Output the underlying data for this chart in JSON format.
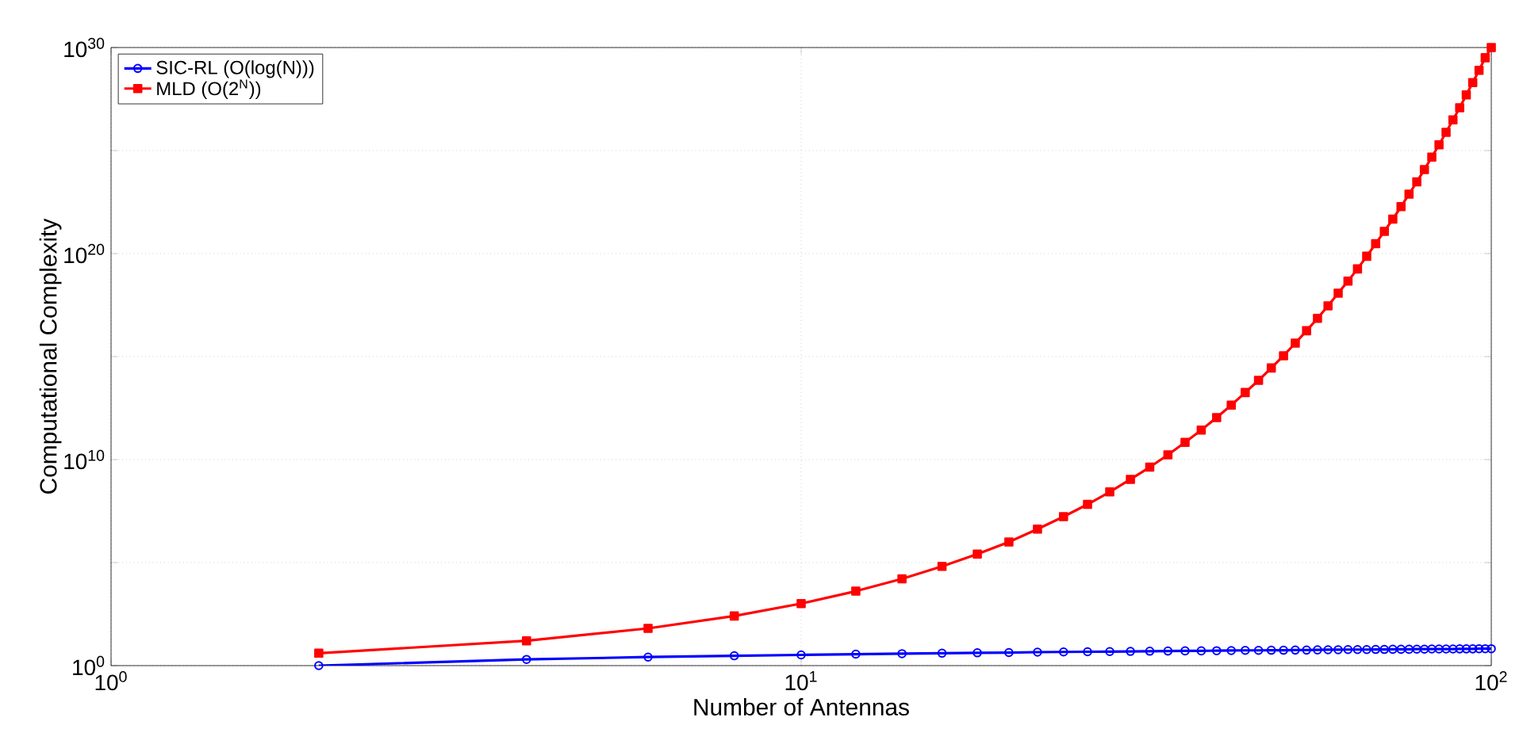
{
  "chart_data": {
    "type": "line",
    "xlabel": "Number of Antennas",
    "ylabel": "Computational Complexity",
    "log": "xy",
    "grid": true,
    "legend": "top left",
    "xlim": [
      1,
      100
    ],
    "ylim": [
      1,
      1e+30
    ],
    "xticks": [
      {
        "value": 1,
        "label": "10$^{0}$"
      },
      {
        "value": 10,
        "label": "10$^{1}$"
      },
      {
        "value": 100,
        "label": "10$^{2}$"
      }
    ],
    "yticks": [
      {
        "value": 1,
        "label": "10$^{0}$"
      },
      {
        "value": 100000.0,
        "label": null
      },
      {
        "value": 10000000000.0,
        "label": "10$^{10}$"
      },
      {
        "value": 1000000000000000.0,
        "label": null
      },
      {
        "value": 1e+20,
        "label": "10$^{20}$"
      },
      {
        "value": 1e+25,
        "label": null
      },
      {
        "value": 1e+30,
        "label": "10$^{30}$"
      }
    ],
    "x": [
      2,
      4,
      6,
      8,
      10,
      12,
      14,
      16,
      18,
      20,
      22,
      24,
      26,
      28,
      30,
      32,
      34,
      36,
      38,
      40,
      42,
      44,
      46,
      48,
      50,
      52,
      54,
      56,
      58,
      60,
      62,
      64,
      66,
      68,
      70,
      72,
      74,
      76,
      78,
      80,
      82,
      84,
      86,
      88,
      90,
      92,
      94,
      96,
      98,
      100
    ],
    "series": [
      {
        "name": "SIC-RL (O(log(N)))",
        "color": "#0000ff",
        "marker": "circle",
        "values": [
          1,
          2,
          2.6,
          3,
          3.3,
          3.6,
          3.8,
          4,
          4.2,
          4.3,
          4.5,
          4.6,
          4.7,
          4.8,
          4.9,
          5,
          5.1,
          5.2,
          5.2,
          5.3,
          5.4,
          5.5,
          5.5,
          5.6,
          5.6,
          5.7,
          5.7,
          5.8,
          5.9,
          5.9,
          6,
          6,
          6,
          6.1,
          6.1,
          6.2,
          6.2,
          6.2,
          6.3,
          6.3,
          6.4,
          6.4,
          6.4,
          6.4,
          6.5,
          6.5,
          6.5,
          6.6,
          6.6,
          6.6
        ]
      },
      {
        "name": "MLD (O(2$^{N}$))",
        "color": "#ff0000",
        "marker": "square",
        "values": [
          4,
          16,
          64,
          256,
          1024,
          4096,
          16384,
          65536,
          260000.0,
          1000000.0,
          4200000.0,
          17000000.0,
          67000000.0,
          270000000.0,
          1100000000.0,
          4300000000.0,
          17000000000.0,
          69000000000.0,
          270000000000.0,
          1100000000000.0,
          4400000000000.0,
          18000000000000.0,
          70000000000000.0,
          280000000000000.0,
          1100000000000000.0,
          4500000000000000.0,
          1.8e+16,
          7.2e+16,
          2.9e+17,
          1.2e+18,
          4.6e+18,
          1.8e+19,
          7.4e+19,
          3e+20,
          1.2e+21,
          4.7e+21,
          1.9e+22,
          7.6e+22,
          3e+23,
          1.2e+24,
          4.8e+24,
          1.9e+25,
          7.7e+25,
          3.1e+26,
          1.2e+27,
          5e+27,
          2e+28,
          7.9e+28,
          3.2e+29,
          1e+30
        ]
      }
    ]
  }
}
